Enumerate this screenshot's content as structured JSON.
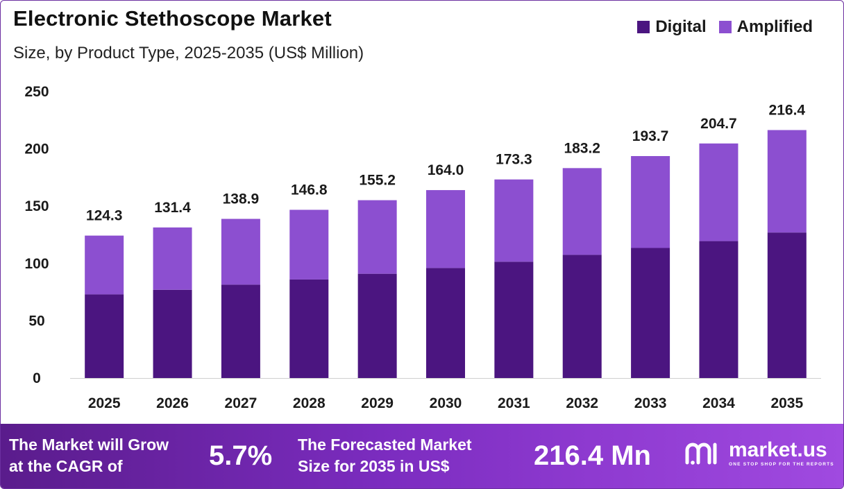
{
  "header": {
    "title": "Electronic Stethoscope Market",
    "subtitle": "Size, by Product Type, 2025-2035 (US$ Million)"
  },
  "legend": [
    {
      "label": "Digital",
      "color": "#4b1580"
    },
    {
      "label": "Amplified",
      "color": "#8c4fd0"
    }
  ],
  "chart_data": {
    "type": "bar",
    "stacked": true,
    "categories": [
      "2025",
      "2026",
      "2027",
      "2028",
      "2029",
      "2030",
      "2031",
      "2032",
      "2033",
      "2034",
      "2035"
    ],
    "series": [
      {
        "name": "Digital",
        "color": "#4b1580",
        "values": [
          73.0,
          77.0,
          81.5,
          86.0,
          91.0,
          96.0,
          101.5,
          107.5,
          113.5,
          119.5,
          127.0
        ]
      },
      {
        "name": "Amplified",
        "color": "#8c4fd0",
        "values": [
          51.3,
          54.4,
          57.4,
          60.8,
          64.2,
          68.0,
          71.8,
          75.7,
          80.2,
          85.2,
          89.4
        ]
      }
    ],
    "totals": [
      "124.3",
      "131.4",
      "138.9",
      "146.8",
      "155.2",
      "164.0",
      "173.3",
      "183.2",
      "193.7",
      "204.7",
      "216.4"
    ],
    "yticks": [
      0,
      50,
      100,
      150,
      200,
      250
    ],
    "ylim": [
      0,
      250
    ],
    "grid": false
  },
  "footer": {
    "cagr_label_line1": "The Market will Grow",
    "cagr_label_line2": "at the CAGR of",
    "cagr_value": "5.7%",
    "forecast_label_line1": "The Forecasted Market",
    "forecast_label_line2": "Size for 2035 in US$",
    "forecast_value": "216.4 Mn",
    "brand_name": "market.us",
    "brand_tagline": "ONE STOP SHOP FOR THE REPORTS"
  }
}
